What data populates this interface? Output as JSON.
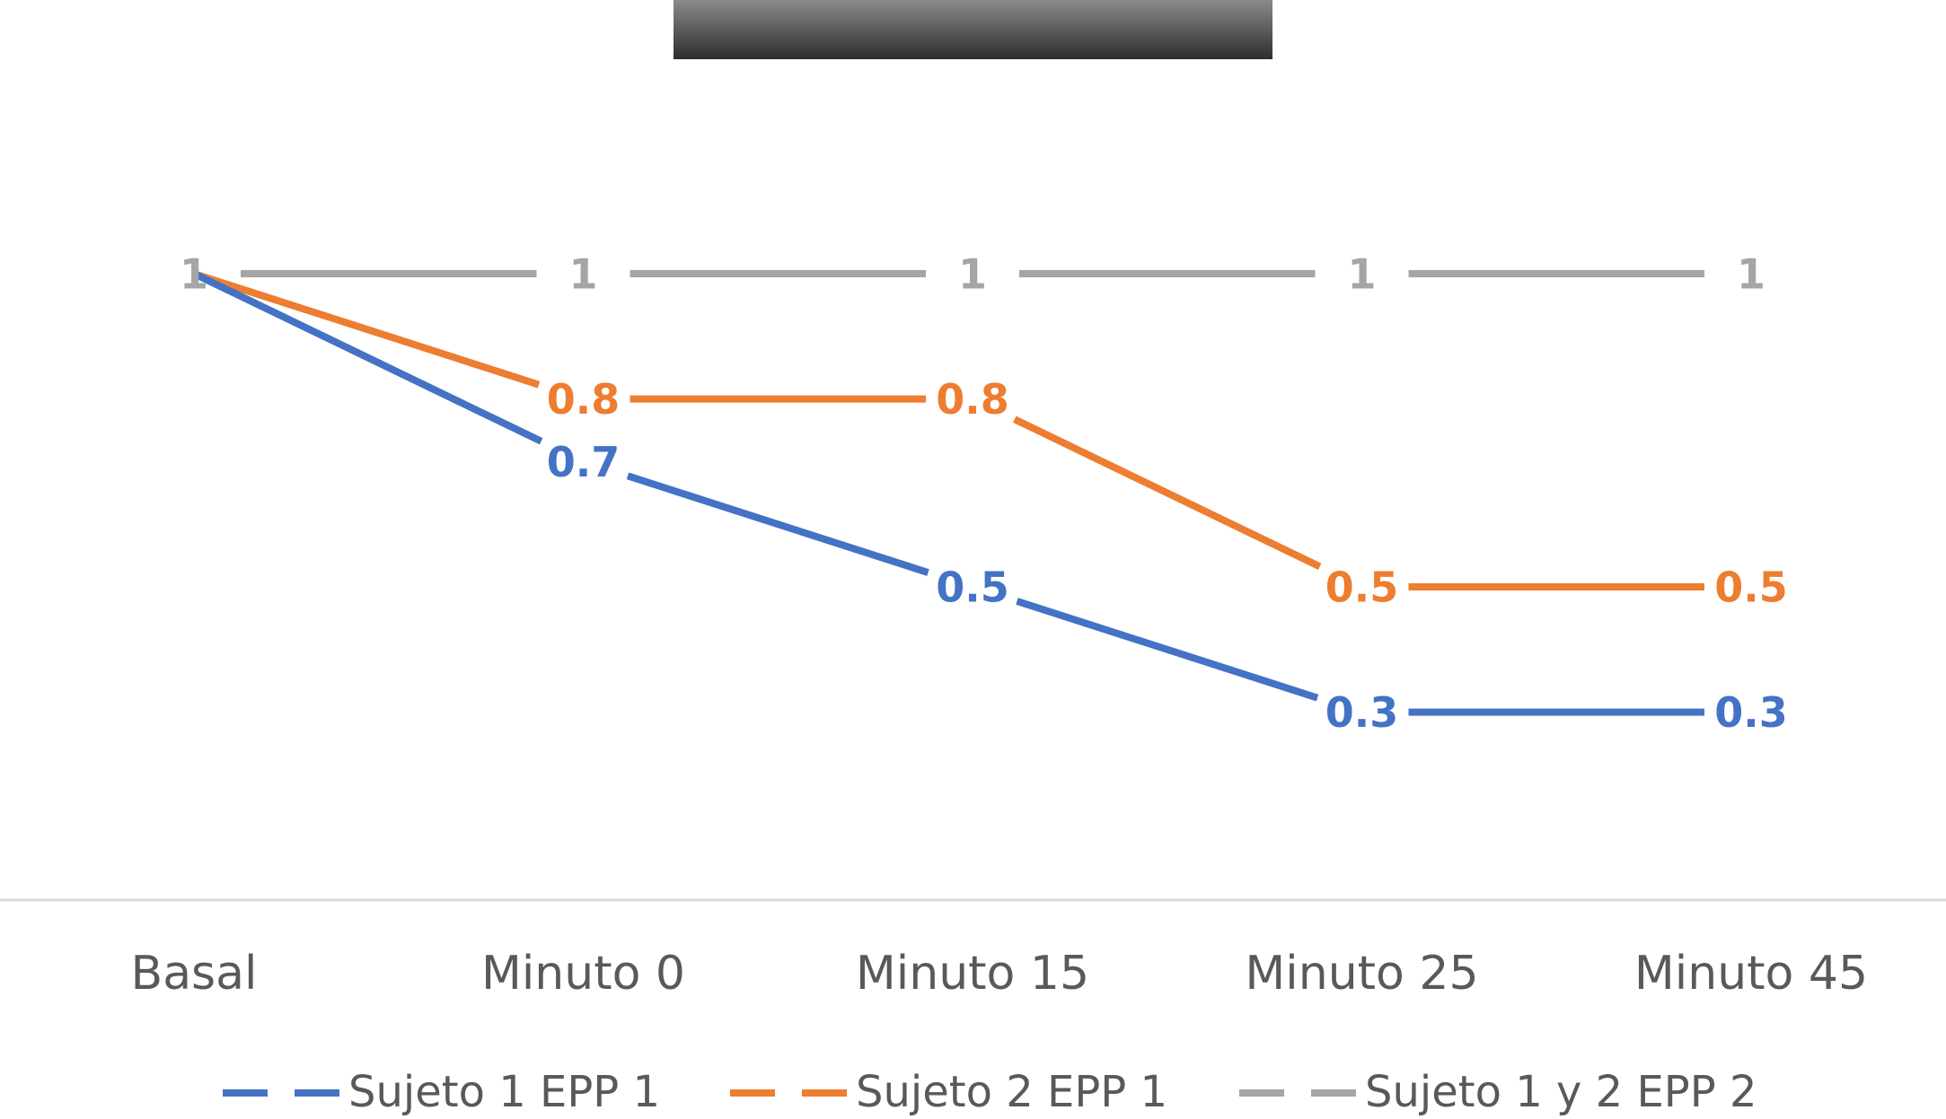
{
  "chart_data": {
    "type": "line",
    "title": "",
    "categories": [
      "Basal",
      "Minuto 0",
      "Minuto 15",
      "Minuto 25",
      "Minuto 45"
    ],
    "series": [
      {
        "name": "Sujeto 1 EPP 1",
        "color": "#4472C4",
        "values": [
          1,
          0.7,
          0.5,
          0.3,
          0.3
        ],
        "labels": [
          "",
          "0.7",
          "0.5",
          "0.3",
          "0.3"
        ]
      },
      {
        "name": "Sujeto 2 EPP 1",
        "color": "#ED7D31",
        "values": [
          1,
          0.8,
          0.8,
          0.5,
          0.5
        ],
        "labels": [
          "",
          "0.8",
          "0.8",
          "0.5",
          "0.5"
        ]
      },
      {
        "name": "Sujeto 1 y 2 EPP 2",
        "color": "#A5A5A5",
        "values": [
          1,
          1,
          1,
          1,
          1
        ],
        "labels": [
          "1",
          "1",
          "1",
          "1",
          "1"
        ]
      }
    ],
    "ylim": [
      0,
      1.45
    ],
    "grid": false,
    "legend_position": "bottom"
  }
}
